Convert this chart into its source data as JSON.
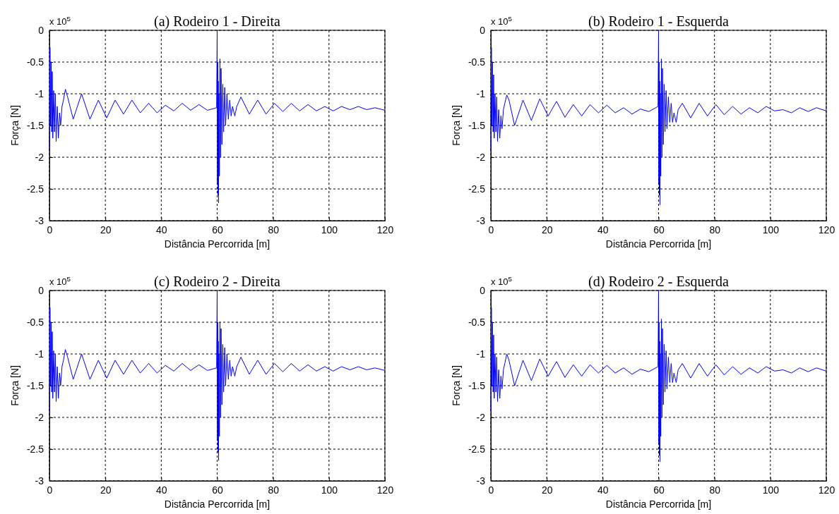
{
  "chart_data": [
    {
      "type": "line",
      "title": "(a) Rodeiro 1 - Direita",
      "xlabel": "Distância Percorrida [m]",
      "ylabel": "Força [N]",
      "annotations": [
        "x 10$^{5}$"
      ],
      "xlim": [
        0,
        120
      ],
      "ylim": [
        -3,
        0
      ],
      "xticks": [
        0,
        20,
        40,
        60,
        80,
        100,
        120
      ],
      "yticks": [
        -3,
        -2.5,
        -2,
        -1.5,
        -1,
        -0.5,
        0
      ],
      "grid": true,
      "line_style": "solid",
      "series": [
        {
          "color": "#0000ff",
          "x": [
            0,
            0.2,
            0.4,
            0.6,
            0.8,
            1,
            1.2,
            1.5,
            1.8,
            2.1,
            2.4,
            2.8,
            3.2,
            3.6,
            4,
            4.5,
            5,
            5.7,
            6.5,
            8.5,
            11.5,
            14.5,
            17.5,
            20.5,
            23.5,
            26.5,
            29.5,
            32.5,
            35.5,
            38.5,
            41.5,
            44.5,
            47.5,
            50.5,
            53.5,
            56.5,
            59.8,
            60,
            60.1,
            60.2,
            60.3,
            60.4,
            60.5,
            60.6,
            60.8,
            61,
            61.2,
            61.4,
            61.7,
            62,
            62.3,
            62.7,
            63,
            63.5,
            64,
            64.5,
            65,
            65.5,
            66.3,
            67,
            68.5,
            71.5,
            74.5,
            77.5,
            80.5,
            83.5,
            86.5,
            89.5,
            92.5,
            95.5,
            98.5,
            101.5,
            104.5,
            107.5,
            110.5,
            113.5,
            116.5,
            120
          ],
          "values": [
            -1.9,
            -0.27,
            -1.5,
            -0.5,
            -1.6,
            -0.65,
            -1.7,
            -0.95,
            -1.6,
            -1,
            -1.75,
            -1.2,
            -1.7,
            -1.3,
            -1.5,
            -1.2,
            -1.1,
            -0.93,
            -1.05,
            -1.4,
            -1,
            -1.4,
            -1.1,
            -1.38,
            -1.1,
            -1.32,
            -1.1,
            -1.3,
            -1.15,
            -1.3,
            -1.18,
            -1.27,
            -1.15,
            -1.26,
            -1.17,
            -1.26,
            -1.22,
            0,
            -2.4,
            -0.5,
            -2.6,
            -0.8,
            -2.72,
            -1,
            -2.3,
            -0.45,
            -2,
            -0.6,
            -1.8,
            -0.85,
            -1.6,
            -0.9,
            -1.5,
            -1,
            -1.4,
            -1.1,
            -1.35,
            -1.2,
            -1.35,
            -1.2,
            -1.05,
            -1.32,
            -1.1,
            -1.32,
            -1.15,
            -1.28,
            -1.15,
            -1.27,
            -1.17,
            -1.27,
            -1.2,
            -1.27,
            -1.2,
            -1.25,
            -1.2,
            -1.25,
            -1.22,
            -1.26
          ]
        }
      ]
    },
    {
      "type": "line",
      "title": "(b) Rodeiro 1 - Esquerda",
      "xlabel": "Distância Percorrida [m]",
      "ylabel": "Força [N]",
      "annotations": [
        "x 10$^{5}$"
      ],
      "xlim": [
        0,
        120
      ],
      "ylim": [
        -3,
        0
      ],
      "xticks": [
        0,
        20,
        40,
        60,
        80,
        100,
        120
      ],
      "yticks": [
        -3,
        -2.5,
        -2,
        -1.5,
        -1,
        -0.5,
        0
      ],
      "grid": true,
      "line_style": "solid",
      "series": [
        {
          "color": "#0000ff",
          "x": [
            0,
            0.2,
            0.4,
            0.6,
            0.8,
            1,
            1.2,
            1.5,
            1.8,
            2.1,
            2.4,
            2.8,
            3.2,
            3.6,
            4,
            4.5,
            5,
            5.7,
            6.5,
            8.5,
            11.5,
            14.5,
            17.5,
            20.5,
            23.5,
            26.5,
            29.5,
            32.5,
            35.5,
            38.5,
            41.5,
            44.5,
            47.5,
            50.5,
            53.5,
            56.5,
            59.8,
            60,
            60.1,
            60.2,
            60.3,
            60.4,
            60.5,
            60.6,
            60.8,
            61,
            61.2,
            61.4,
            61.7,
            62,
            62.3,
            62.7,
            63,
            63.5,
            64,
            64.5,
            65,
            65.5,
            66.3,
            67,
            68.5,
            71.5,
            74.5,
            77.5,
            80.5,
            83.5,
            86.5,
            89.5,
            92.5,
            95.5,
            98.5,
            101.5,
            104.5,
            107.5,
            110.5,
            113.5,
            116.5,
            120
          ],
          "values": [
            -1.9,
            -0.27,
            -1.5,
            -0.5,
            -1.6,
            -0.7,
            -1.7,
            -1,
            -1.6,
            -1.05,
            -1.75,
            -1.25,
            -1.7,
            -1.35,
            -1.55,
            -1.25,
            -1.15,
            -1.02,
            -1.1,
            -1.5,
            -1.1,
            -1.42,
            -1.08,
            -1.35,
            -1.12,
            -1.37,
            -1.17,
            -1.35,
            -1.17,
            -1.3,
            -1.18,
            -1.3,
            -1.22,
            -1.32,
            -1.24,
            -1.28,
            -1.2,
            0,
            -2.4,
            -0.5,
            -2.6,
            -0.8,
            -2.75,
            -1,
            -2.3,
            -0.45,
            -2,
            -0.6,
            -1.8,
            -0.85,
            -1.6,
            -0.95,
            -1.55,
            -1.05,
            -1.45,
            -1.15,
            -1.45,
            -1.3,
            -1.45,
            -1.25,
            -1.15,
            -1.38,
            -1.15,
            -1.35,
            -1.17,
            -1.33,
            -1.2,
            -1.32,
            -1.22,
            -1.3,
            -1.2,
            -1.27,
            -1.25,
            -1.3,
            -1.22,
            -1.28,
            -1.22,
            -1.27
          ]
        }
      ]
    },
    {
      "type": "line",
      "title": "(c) Rodeiro 2 - Direita",
      "xlabel": "Distância Percorrida [m]",
      "ylabel": "Força [N]",
      "annotations": [
        "x 10$^{5}$"
      ],
      "xlim": [
        0,
        120
      ],
      "ylim": [
        -3,
        0
      ],
      "xticks": [
        0,
        20,
        40,
        60,
        80,
        100,
        120
      ],
      "yticks": [
        -3,
        -2.5,
        -2,
        -1.5,
        -1,
        -0.5,
        0
      ],
      "grid": true,
      "line_style": "solid",
      "series": [
        {
          "color": "#0000ff",
          "x": [
            0,
            0.2,
            0.4,
            0.6,
            0.8,
            1,
            1.2,
            1.5,
            1.8,
            2.1,
            2.4,
            2.8,
            3.2,
            3.6,
            4,
            4.5,
            5,
            5.7,
            6.5,
            8.5,
            11.5,
            14.5,
            17.5,
            20.5,
            23.5,
            26.5,
            29.5,
            32.5,
            35.5,
            38.5,
            41.5,
            44.5,
            47.5,
            50.5,
            53.5,
            56.5,
            59.8,
            60,
            60.1,
            60.2,
            60.3,
            60.4,
            60.5,
            60.6,
            60.8,
            61,
            61.2,
            61.4,
            61.7,
            62,
            62.3,
            62.7,
            63,
            63.5,
            64,
            64.5,
            65,
            65.5,
            66.3,
            67,
            68.5,
            71.5,
            74.5,
            77.5,
            80.5,
            83.5,
            86.5,
            89.5,
            92.5,
            95.5,
            98.5,
            101.5,
            104.5,
            107.5,
            110.5,
            113.5,
            116.5,
            120
          ],
          "values": [
            -1.9,
            -0.27,
            -1.5,
            -0.5,
            -1.6,
            -0.65,
            -1.7,
            -0.95,
            -1.6,
            -1,
            -1.75,
            -1.2,
            -1.7,
            -1.3,
            -1.5,
            -1.2,
            -1.1,
            -0.93,
            -1.05,
            -1.4,
            -1,
            -1.4,
            -1.1,
            -1.38,
            -1.1,
            -1.32,
            -1.1,
            -1.3,
            -1.15,
            -1.3,
            -1.18,
            -1.27,
            -1.15,
            -1.26,
            -1.17,
            -1.26,
            -1.22,
            0,
            -2.35,
            -0.5,
            -2.55,
            -0.8,
            -2.68,
            -1,
            -2.3,
            -0.5,
            -2,
            -0.6,
            -1.8,
            -0.85,
            -1.6,
            -0.9,
            -1.5,
            -1,
            -1.4,
            -1.1,
            -1.35,
            -1.2,
            -1.35,
            -1.2,
            -1.05,
            -1.32,
            -1.1,
            -1.32,
            -1.15,
            -1.28,
            -1.15,
            -1.27,
            -1.17,
            -1.27,
            -1.2,
            -1.27,
            -1.2,
            -1.25,
            -1.2,
            -1.25,
            -1.22,
            -1.26
          ]
        }
      ]
    },
    {
      "type": "line",
      "title": "(d) Rodeiro 2 - Esquerda",
      "xlabel": "Distância Percorrida [m]",
      "ylabel": "Força [N]",
      "annotations": [
        "x 10$^{5}$"
      ],
      "xlim": [
        0,
        120
      ],
      "ylim": [
        -3,
        0
      ],
      "xticks": [
        0,
        20,
        40,
        60,
        80,
        100,
        120
      ],
      "yticks": [
        -3,
        -2.5,
        -2,
        -1.5,
        -1,
        -0.5,
        0
      ],
      "grid": true,
      "line_style": "solid",
      "series": [
        {
          "color": "#0000ff",
          "x": [
            0,
            0.2,
            0.4,
            0.6,
            0.8,
            1,
            1.2,
            1.5,
            1.8,
            2.1,
            2.4,
            2.8,
            3.2,
            3.6,
            4,
            4.5,
            5,
            5.7,
            6.5,
            8.5,
            11.5,
            14.5,
            17.5,
            20.5,
            23.5,
            26.5,
            29.5,
            32.5,
            35.5,
            38.5,
            41.5,
            44.5,
            47.5,
            50.5,
            53.5,
            56.5,
            59.8,
            60,
            60.1,
            60.2,
            60.3,
            60.4,
            60.5,
            60.6,
            60.8,
            61,
            61.2,
            61.4,
            61.7,
            62,
            62.3,
            62.7,
            63,
            63.5,
            64,
            64.5,
            65,
            65.5,
            66.3,
            67,
            68.5,
            71.5,
            74.5,
            77.5,
            80.5,
            83.5,
            86.5,
            89.5,
            92.5,
            95.5,
            98.5,
            101.5,
            104.5,
            107.5,
            110.5,
            113.5,
            116.5,
            120
          ],
          "values": [
            -1.9,
            -0.27,
            -1.5,
            -0.5,
            -1.6,
            -0.7,
            -1.7,
            -1,
            -1.6,
            -1.05,
            -1.75,
            -1.25,
            -1.7,
            -1.35,
            -1.55,
            -1.25,
            -1.15,
            -1,
            -1.1,
            -1.5,
            -1.1,
            -1.42,
            -1.08,
            -1.35,
            -1.12,
            -1.37,
            -1.17,
            -1.35,
            -1.17,
            -1.3,
            -1.18,
            -1.3,
            -1.22,
            -1.32,
            -1.24,
            -1.28,
            -1.2,
            0,
            -2.4,
            -0.5,
            -2.6,
            -0.8,
            -2.7,
            -1,
            -2.3,
            -0.45,
            -2,
            -0.6,
            -1.8,
            -0.85,
            -1.6,
            -0.95,
            -1.55,
            -1.05,
            -1.45,
            -1.15,
            -1.45,
            -1.3,
            -1.45,
            -1.25,
            -1.15,
            -1.38,
            -1.15,
            -1.35,
            -1.17,
            -1.33,
            -1.2,
            -1.32,
            -1.22,
            -1.3,
            -1.2,
            -1.27,
            -1.25,
            -1.3,
            -1.22,
            -1.28,
            -1.22,
            -1.27
          ]
        }
      ]
    }
  ]
}
